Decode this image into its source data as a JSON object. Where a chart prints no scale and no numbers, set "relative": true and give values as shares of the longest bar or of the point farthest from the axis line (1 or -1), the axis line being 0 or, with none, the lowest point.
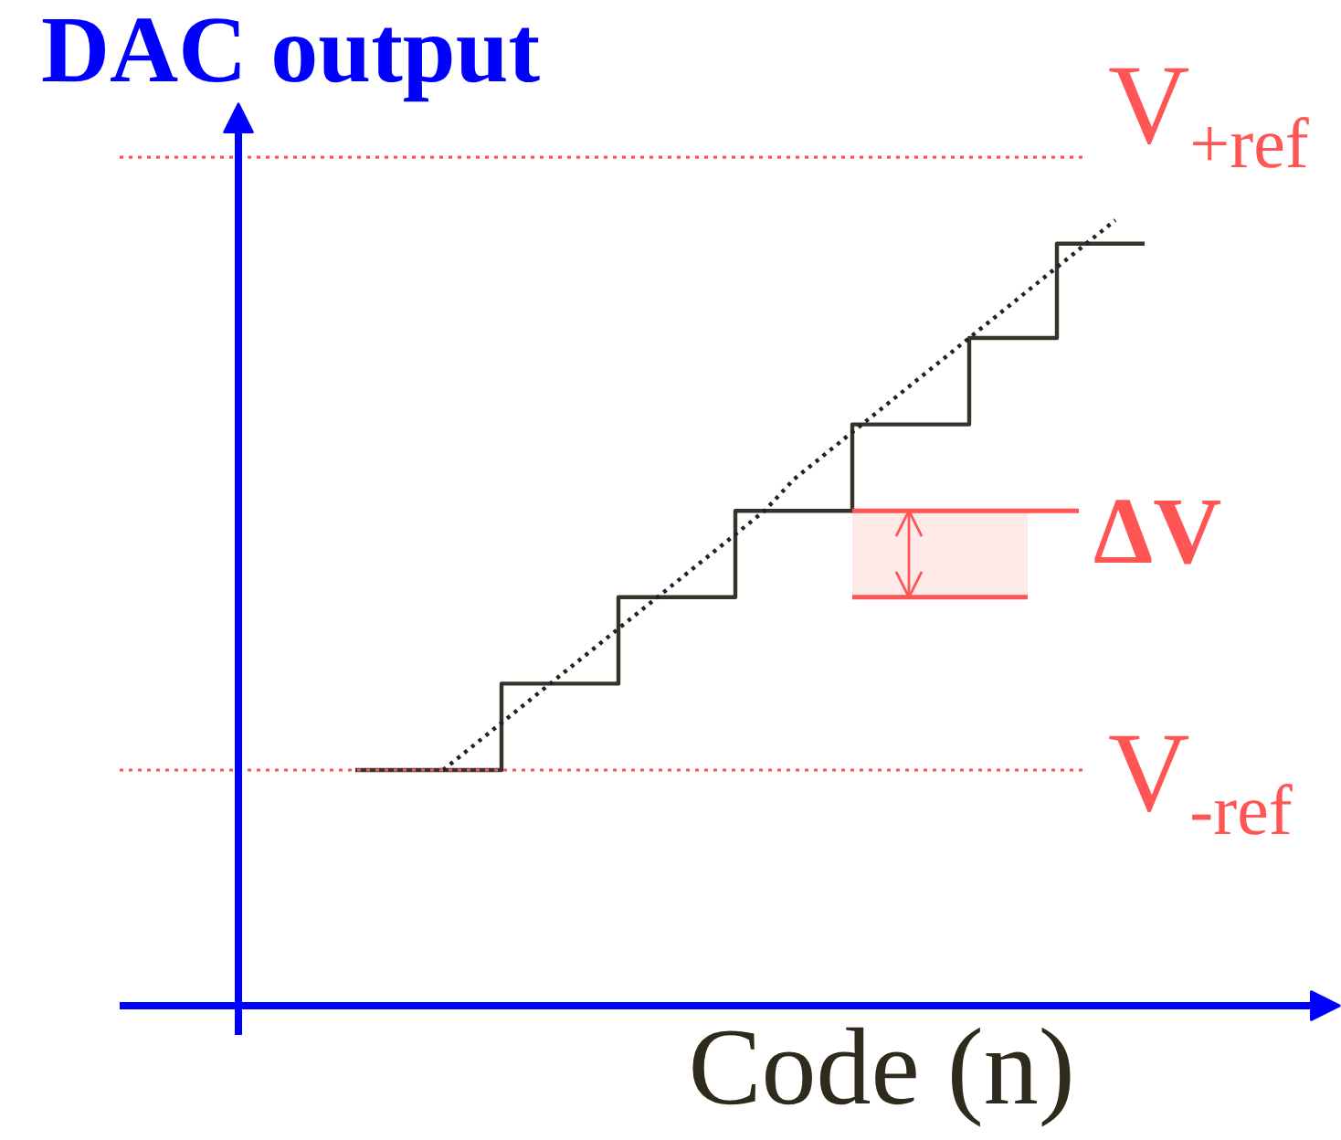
{
  "chart_data": {
    "type": "step",
    "ylabel": "DAC output",
    "xlabel": "Code (n)",
    "relative": true,
    "categories": [
      null,
      null,
      null,
      null,
      null,
      null,
      null,
      null,
      null,
      null,
      null,
      null,
      null,
      null,
      null,
      null,
      null,
      null,
      null,
      null,
      null,
      null,
      null,
      null,
      null,
      null,
      null,
      null,
      null,
      null,
      null,
      null
    ],
    "series": [
      {
        "color": "#35332a",
        "values": [
          null,
          null,
          null,
          null,
          0.3,
          0.3,
          0.3,
          0.3,
          0.3,
          0.41,
          0.41,
          0.41,
          0.41,
          0.52,
          0.52,
          0.52,
          0.52,
          0.63,
          0.63,
          0.63,
          0.63,
          0.74,
          0.74,
          0.74,
          0.74,
          0.85,
          0.85,
          0.85,
          0.97,
          0.97,
          0.97,
          0.97
        ]
      },
      {
        "type": "line",
        "color": "#222222",
        "line_style": "dotted",
        "values": [
          null,
          null,
          null,
          null,
          null,
          null,
          null,
          0.3,
          0.33,
          0.36,
          0.39,
          0.42,
          0.45,
          0.48,
          0.51,
          0.54,
          0.57,
          0.6,
          0.63,
          0.67,
          0.7,
          0.73,
          0.76,
          0.79,
          0.82,
          0.85,
          0.88,
          0.91,
          0.94,
          0.97,
          1.0,
          null
        ]
      }
    ],
    "ref_lines": [
      {
        "axis": "y",
        "value": 1.08,
        "label": "V$_{+ref}$",
        "color": "#ff5555",
        "line_style": "dotted"
      },
      {
        "axis": "y",
        "value": 0.3,
        "label": "V$_{-ref}$",
        "color": "#ff5555",
        "line_style": "dotted"
      }
    ],
    "bands": [
      {
        "axis": "y",
        "from": 0.52,
        "to": 0.63,
        "label": "ΔV",
        "color": "#ff5555"
      }
    ]
  }
}
